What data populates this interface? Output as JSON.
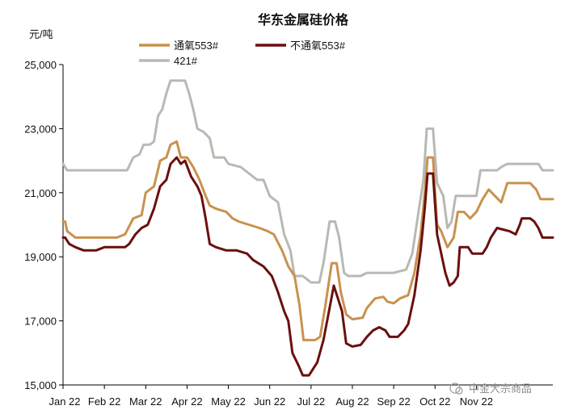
{
  "chart_data": {
    "type": "line",
    "title": "华东金属硅价格",
    "ylabel": "元/吨",
    "ylim": [
      15000,
      25000
    ],
    "yticks": [
      "15,000",
      "17,000",
      "19,000",
      "21,000",
      "23,000",
      "25,000"
    ],
    "x_categories": [
      "Jan 22",
      "Feb 22",
      "Mar 22",
      "Apr 22",
      "May 22",
      "Jun 22",
      "Jul 22",
      "Aug 22",
      "Sep 22",
      "Oct 22",
      "Nov 22"
    ],
    "legend": [
      "通氧553#",
      "不通氧553#",
      "421#"
    ],
    "series": [
      {
        "name": "通氧553#",
        "color": "#C8924E",
        "points": [
          [
            0.0,
            20100
          ],
          [
            0.05,
            20100
          ],
          [
            0.1,
            19800
          ],
          [
            0.3,
            19600
          ],
          [
            0.6,
            19600
          ],
          [
            1.0,
            19600
          ],
          [
            1.3,
            19600
          ],
          [
            1.5,
            19700
          ],
          [
            1.7,
            20200
          ],
          [
            1.9,
            20300
          ],
          [
            2.0,
            21000
          ],
          [
            2.2,
            21200
          ],
          [
            2.35,
            22000
          ],
          [
            2.5,
            22100
          ],
          [
            2.6,
            22500
          ],
          [
            2.75,
            22600
          ],
          [
            2.85,
            22100
          ],
          [
            3.0,
            22100
          ],
          [
            3.15,
            21800
          ],
          [
            3.3,
            21400
          ],
          [
            3.45,
            20900
          ],
          [
            3.55,
            20600
          ],
          [
            3.7,
            20500
          ],
          [
            3.95,
            20400
          ],
          [
            4.1,
            20200
          ],
          [
            4.25,
            20100
          ],
          [
            4.5,
            20000
          ],
          [
            4.75,
            19900
          ],
          [
            4.95,
            19800
          ],
          [
            5.1,
            19700
          ],
          [
            5.3,
            19200
          ],
          [
            5.45,
            18700
          ],
          [
            5.6,
            18400
          ],
          [
            5.72,
            17500
          ],
          [
            5.82,
            16400
          ],
          [
            6.0,
            16400
          ],
          [
            6.1,
            16400
          ],
          [
            6.22,
            16500
          ],
          [
            6.35,
            17500
          ],
          [
            6.5,
            18800
          ],
          [
            6.62,
            18800
          ],
          [
            6.72,
            17900
          ],
          [
            6.85,
            17200
          ],
          [
            7.0,
            17050
          ],
          [
            7.25,
            17100
          ],
          [
            7.35,
            17400
          ],
          [
            7.55,
            17700
          ],
          [
            7.75,
            17750
          ],
          [
            7.85,
            17600
          ],
          [
            8.0,
            17550
          ],
          [
            8.15,
            17700
          ],
          [
            8.35,
            17800
          ],
          [
            8.5,
            18500
          ],
          [
            8.65,
            19700
          ],
          [
            8.75,
            21000
          ],
          [
            8.82,
            22100
          ],
          [
            8.95,
            22100
          ],
          [
            9.05,
            20000
          ],
          [
            9.15,
            19800
          ],
          [
            9.3,
            19300
          ],
          [
            9.45,
            19600
          ],
          [
            9.55,
            20400
          ],
          [
            9.7,
            20400
          ],
          [
            9.85,
            20200
          ],
          [
            10.0,
            20400
          ],
          [
            10.15,
            20800
          ],
          [
            10.3,
            21100
          ],
          [
            10.45,
            20900
          ],
          [
            10.6,
            20700
          ],
          [
            10.75,
            21300
          ],
          [
            11.0,
            21300
          ],
          [
            11.3,
            21300
          ],
          [
            11.45,
            21100
          ],
          [
            11.55,
            20800
          ],
          [
            11.85,
            20800
          ]
        ]
      },
      {
        "name": "不通氧553#",
        "color": "#6B0F0F",
        "points": [
          [
            0.0,
            19600
          ],
          [
            0.05,
            19600
          ],
          [
            0.15,
            19400
          ],
          [
            0.3,
            19300
          ],
          [
            0.5,
            19200
          ],
          [
            0.8,
            19200
          ],
          [
            1.0,
            19300
          ],
          [
            1.3,
            19300
          ],
          [
            1.5,
            19300
          ],
          [
            1.6,
            19400
          ],
          [
            1.75,
            19700
          ],
          [
            1.9,
            19900
          ],
          [
            2.05,
            20000
          ],
          [
            2.2,
            20500
          ],
          [
            2.35,
            21200
          ],
          [
            2.5,
            21400
          ],
          [
            2.6,
            21900
          ],
          [
            2.75,
            22100
          ],
          [
            2.85,
            21900
          ],
          [
            2.95,
            22000
          ],
          [
            3.1,
            21500
          ],
          [
            3.25,
            21200
          ],
          [
            3.35,
            20900
          ],
          [
            3.45,
            20200
          ],
          [
            3.55,
            19400
          ],
          [
            3.7,
            19300
          ],
          [
            3.95,
            19200
          ],
          [
            4.2,
            19200
          ],
          [
            4.45,
            19100
          ],
          [
            4.6,
            18900
          ],
          [
            4.85,
            18700
          ],
          [
            5.05,
            18400
          ],
          [
            5.2,
            17900
          ],
          [
            5.35,
            17300
          ],
          [
            5.45,
            17000
          ],
          [
            5.55,
            16000
          ],
          [
            5.7,
            15600
          ],
          [
            5.8,
            15300
          ],
          [
            5.95,
            15300
          ],
          [
            6.05,
            15500
          ],
          [
            6.15,
            15700
          ],
          [
            6.3,
            16400
          ],
          [
            6.45,
            17400
          ],
          [
            6.55,
            18100
          ],
          [
            6.65,
            17700
          ],
          [
            6.75,
            17300
          ],
          [
            6.85,
            16300
          ],
          [
            7.0,
            16200
          ],
          [
            7.2,
            16250
          ],
          [
            7.35,
            16500
          ],
          [
            7.5,
            16700
          ],
          [
            7.65,
            16800
          ],
          [
            7.8,
            16700
          ],
          [
            7.9,
            16500
          ],
          [
            8.1,
            16500
          ],
          [
            8.25,
            16700
          ],
          [
            8.35,
            16900
          ],
          [
            8.5,
            17800
          ],
          [
            8.65,
            19200
          ],
          [
            8.75,
            20500
          ],
          [
            8.82,
            21600
          ],
          [
            8.95,
            21600
          ],
          [
            9.05,
            19700
          ],
          [
            9.15,
            19100
          ],
          [
            9.25,
            18500
          ],
          [
            9.35,
            18100
          ],
          [
            9.45,
            18200
          ],
          [
            9.55,
            18400
          ],
          [
            9.6,
            19300
          ],
          [
            9.8,
            19300
          ],
          [
            9.9,
            19100
          ],
          [
            10.15,
            19100
          ],
          [
            10.25,
            19300
          ],
          [
            10.35,
            19600
          ],
          [
            10.5,
            19900
          ],
          [
            10.65,
            19850
          ],
          [
            10.8,
            19800
          ],
          [
            10.95,
            19700
          ],
          [
            11.05,
            20000
          ],
          [
            11.1,
            20200
          ],
          [
            11.3,
            20200
          ],
          [
            11.4,
            20100
          ],
          [
            11.5,
            19900
          ],
          [
            11.6,
            19600
          ],
          [
            11.85,
            19600
          ]
        ]
      },
      {
        "name": "421#",
        "color": "#B9B9B4",
        "points": [
          [
            0.0,
            21900
          ],
          [
            0.1,
            21700
          ],
          [
            0.3,
            21700
          ],
          [
            0.6,
            21700
          ],
          [
            1.0,
            21700
          ],
          [
            1.4,
            21700
          ],
          [
            1.55,
            21700
          ],
          [
            1.7,
            22100
          ],
          [
            1.85,
            22200
          ],
          [
            1.95,
            22500
          ],
          [
            2.1,
            22500
          ],
          [
            2.2,
            22600
          ],
          [
            2.3,
            23400
          ],
          [
            2.4,
            23600
          ],
          [
            2.5,
            24100
          ],
          [
            2.6,
            24500
          ],
          [
            2.95,
            24500
          ],
          [
            3.05,
            24100
          ],
          [
            3.15,
            23600
          ],
          [
            3.25,
            23000
          ],
          [
            3.4,
            22900
          ],
          [
            3.55,
            22700
          ],
          [
            3.65,
            22100
          ],
          [
            3.9,
            22100
          ],
          [
            4.0,
            21900
          ],
          [
            4.3,
            21800
          ],
          [
            4.5,
            21600
          ],
          [
            4.7,
            21400
          ],
          [
            4.85,
            21400
          ],
          [
            5.0,
            20900
          ],
          [
            5.2,
            20700
          ],
          [
            5.35,
            19700
          ],
          [
            5.5,
            19200
          ],
          [
            5.6,
            18400
          ],
          [
            5.8,
            18400
          ],
          [
            6.0,
            18200
          ],
          [
            6.2,
            18200
          ],
          [
            6.3,
            18800
          ],
          [
            6.45,
            20100
          ],
          [
            6.58,
            20100
          ],
          [
            6.68,
            19600
          ],
          [
            6.8,
            18500
          ],
          [
            6.9,
            18400
          ],
          [
            7.2,
            18400
          ],
          [
            7.35,
            18500
          ],
          [
            7.8,
            18500
          ],
          [
            8.0,
            18500
          ],
          [
            8.3,
            18600
          ],
          [
            8.45,
            19100
          ],
          [
            8.6,
            20400
          ],
          [
            8.72,
            21400
          ],
          [
            8.8,
            23000
          ],
          [
            8.95,
            23000
          ],
          [
            9.05,
            21300
          ],
          [
            9.2,
            20900
          ],
          [
            9.3,
            19900
          ],
          [
            9.4,
            20100
          ],
          [
            9.5,
            20900
          ],
          [
            9.65,
            20900
          ],
          [
            9.85,
            20900
          ],
          [
            10.0,
            20900
          ],
          [
            10.1,
            21700
          ],
          [
            10.3,
            21700
          ],
          [
            10.5,
            21700
          ],
          [
            10.6,
            21800
          ],
          [
            10.75,
            21900
          ],
          [
            10.9,
            21900
          ],
          [
            11.3,
            21900
          ],
          [
            11.5,
            21900
          ],
          [
            11.6,
            21700
          ],
          [
            11.85,
            21700
          ]
        ]
      }
    ],
    "watermark": "中金大宗商品",
    "grid": false,
    "legend_position": "top"
  }
}
